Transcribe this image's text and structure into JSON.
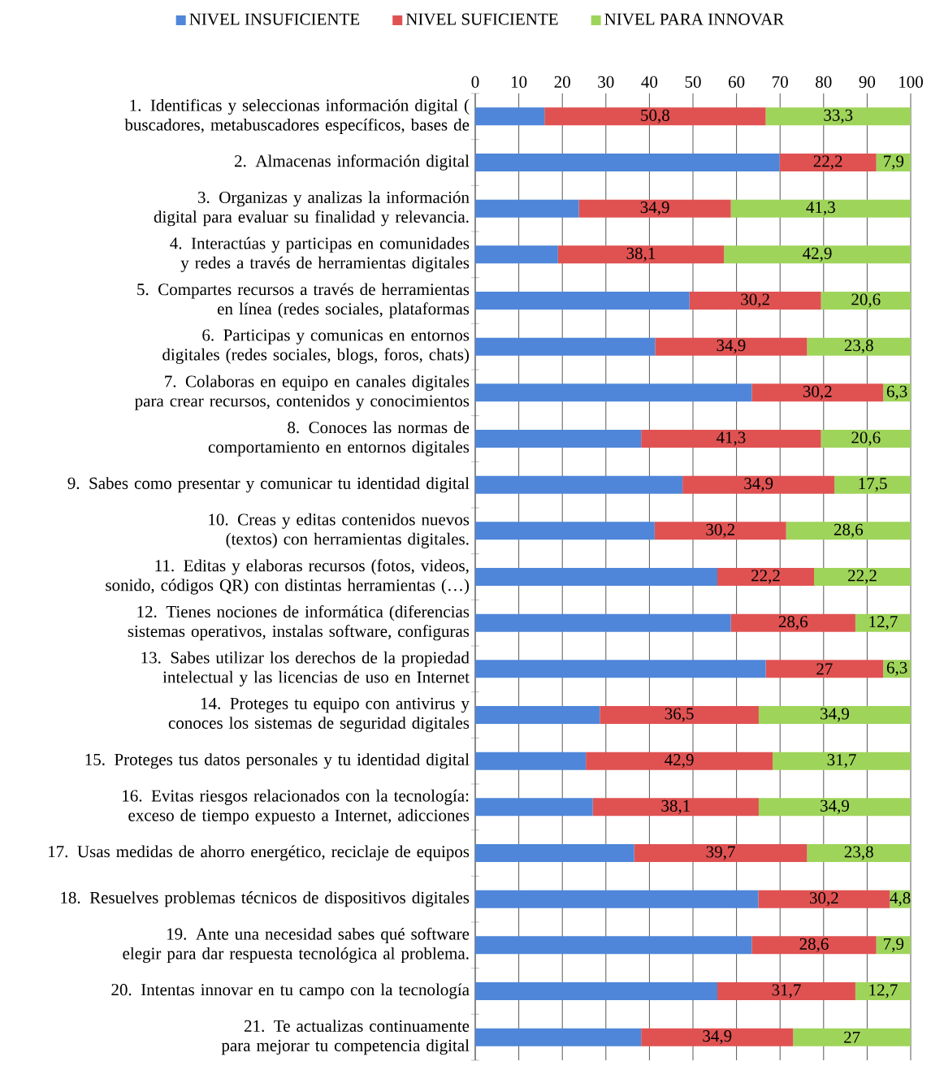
{
  "chart_data": {
    "type": "bar",
    "orientation": "horizontal",
    "stacked": true,
    "legend": "top",
    "grid": "x",
    "categories": [
      "1. Identificas y seleccionas información digital ( buscadores, metabuscadores específicos, bases de",
      "2. Almacenas información digital",
      "3. Organizas y analizas la información digital para evaluar su finalidad y relevancia.",
      "4. Interactúas y participas en comunidades y redes a través de herramientas digitales",
      "5. Compartes recursos a través de herramientas en línea (redes sociales, plataformas",
      "6. Participas y comunicas en entornos digitales (redes sociales, blogs, foros, chats)",
      "7. Colaboras en equipo en canales digitales para crear recursos, contenidos y conocimientos",
      "8. Conoces las normas de comportamiento en entornos digitales",
      "9. Sabes como presentar y comunicar tu identidad digital",
      "10. Creas y editas contenidos nuevos (textos) con herramientas digitales.",
      "11. Editas y elaboras recursos (fotos, videos, sonido, códigos QR) con distintas herramientas (…)",
      "12. Tienes nociones de informática (diferencias sistemas operativos, instalas software, configuras",
      "13. Sabes utilizar los derechos de la propiedad intelectual y las licencias de uso en Internet",
      "14. Proteges tu equipo con antivirus y conoces los sistemas de seguridad digitales",
      "15. Proteges tus datos personales y tu identidad digital",
      "16. Evitas riesgos relacionados con la tecnología: exceso de tiempo expuesto a Internet, adicciones",
      "17. Usas medidas de ahorro energético, reciclaje de equipos",
      "18. Resuelves problemas técnicos de dispositivos digitales",
      "19. Ante una necesidad sabes qué software elegir para dar respuesta tecnológica al problema.",
      "20. Intentas innovar en tu campo con la tecnología",
      "21. Te actualizas continuamente para mejorar tu competencia digital"
    ],
    "xlim": [
      0,
      100
    ],
    "xticks": [
      0,
      10,
      20,
      30,
      40,
      50,
      60,
      70,
      80,
      90,
      100
    ],
    "series": [
      {
        "name": "NIVEL INSUFICIENTE",
        "color": "#4f86d9",
        "values": [
          15.9,
          69.9,
          23.8,
          19,
          49.2,
          41.3,
          63.5,
          38.1,
          47.6,
          41.2,
          55.6,
          58.7,
          66.7,
          28.6,
          25.4,
          27,
          36.5,
          65,
          63.5,
          55.6,
          38.1
        ]
      },
      {
        "name": "NIVEL SUFICIENTE",
        "color": "#e05252",
        "values": [
          50.8,
          22.2,
          34.9,
          38.1,
          30.2,
          34.9,
          30.2,
          41.3,
          34.9,
          30.2,
          22.2,
          28.6,
          27,
          36.5,
          42.9,
          38.1,
          39.7,
          30.2,
          28.6,
          31.7,
          34.9
        ],
        "value_labels": [
          "50,8",
          "22,2",
          "34,9",
          "38,1",
          "30,2",
          "34,9",
          "30,2",
          "41,3",
          "34,9",
          "30,2",
          "22,2",
          "28,6",
          "27",
          "36,5",
          "42,9",
          "38,1",
          "39,7",
          "30,2",
          "28,6",
          "31,7",
          "34,9"
        ]
      },
      {
        "name": "NIVEL PARA INNOVAR",
        "color": "#9fd45a",
        "values": [
          33.3,
          7.9,
          41.3,
          42.9,
          20.6,
          23.8,
          6.3,
          20.6,
          17.5,
          28.6,
          22.2,
          12.7,
          6.3,
          34.9,
          31.7,
          34.9,
          23.8,
          4.8,
          7.9,
          12.7,
          27
        ],
        "value_labels": [
          "33,3",
          "7,9",
          "41,3",
          "42,9",
          "20,6",
          "23,8",
          "6,3",
          "20,6",
          "17,5",
          "28,6",
          "22,2",
          "12,7",
          "6,3",
          "34,9",
          "31,7",
          "34,9",
          "23,8",
          "4,8",
          "7,9",
          "12,7",
          "27"
        ]
      }
    ]
  }
}
